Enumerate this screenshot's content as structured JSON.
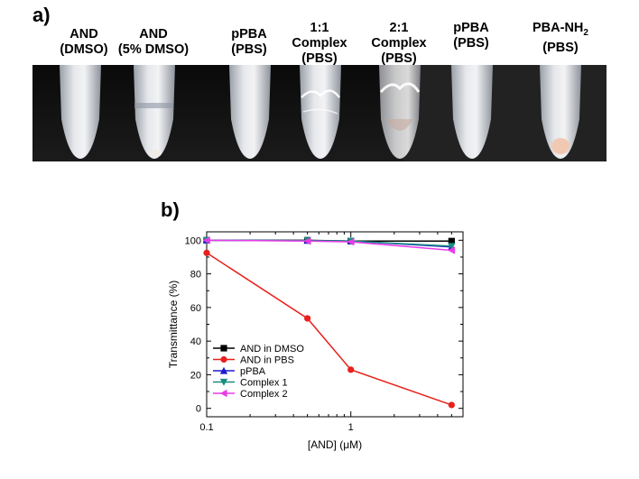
{
  "panel_a": {
    "label": "a)",
    "tubes": [
      {
        "line1": "AND",
        "line2": "(DMSO)"
      },
      {
        "line1": "AND",
        "line2": "(5% DMSO)"
      },
      {
        "line1": "pPBA",
        "line2": "(PBS)"
      },
      {
        "line1": "1:1",
        "line2": "Complex",
        "line3": "(PBS)"
      },
      {
        "line1": "2:1",
        "line2": "Complex",
        "line3": "(PBS)"
      },
      {
        "line1": "pPBA",
        "line2": "(PBS)"
      },
      {
        "line1": "PBA-NH",
        "sub": "2",
        "line2": "(PBS)"
      }
    ]
  },
  "panel_b": {
    "label": "b)"
  },
  "chart_data": {
    "type": "line",
    "xlabel": "[AND] (μM)",
    "ylabel": "Transmittance (%)",
    "xscale": "log",
    "xlim": [
      0.1,
      6
    ],
    "ylim": [
      -5,
      105
    ],
    "xticks": [
      0.1,
      1
    ],
    "xtick_labels": [
      "0.1",
      "1"
    ],
    "yticks": [
      0,
      20,
      40,
      60,
      80,
      100
    ],
    "x": [
      0.1,
      0.5,
      1,
      5
    ],
    "legend_position": "bottom-left",
    "series": [
      {
        "name": "AND in DMSO",
        "values": [
          100,
          100,
          99.5,
          99.5
        ],
        "color": "#000000",
        "marker": "square"
      },
      {
        "name": "AND in PBS",
        "values": [
          92.5,
          53.5,
          23,
          2
        ],
        "color": "#e8201c",
        "marker": "circle"
      },
      {
        "name": "pPBA",
        "values": [
          100,
          99.8,
          99.5,
          96
        ],
        "color": "#1c1ccc",
        "marker": "triangle-up"
      },
      {
        "name": "Complex 1",
        "values": [
          100,
          99.8,
          99.5,
          96.5
        ],
        "color": "#1a8c80",
        "marker": "triangle-down"
      },
      {
        "name": "Complex 2",
        "values": [
          100,
          99.5,
          99,
          94
        ],
        "color": "#e83be8",
        "marker": "triangle-left"
      }
    ]
  }
}
